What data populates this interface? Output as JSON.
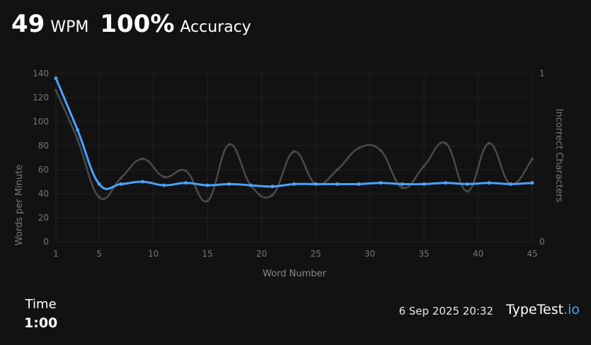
{
  "header": {
    "wpm_value": "49",
    "wpm_label": "WPM",
    "accuracy_value": "100%",
    "accuracy_label": "Accuracy"
  },
  "footer": {
    "time_label": "Time",
    "time_value": "1:00",
    "timestamp": "6 Sep 2025 20:32",
    "logo_main": "TypeTest",
    "logo_suffix": ".io"
  },
  "chart_data": {
    "type": "line",
    "xlabel": "Word Number",
    "ylabel": "Words per Minute",
    "y2label": "Incorrect Characters",
    "xlim": [
      1,
      45
    ],
    "ylim": [
      0,
      140
    ],
    "y2lim": [
      0,
      1
    ],
    "x_ticks": [
      1,
      5,
      10,
      15,
      20,
      25,
      30,
      35,
      40,
      45
    ],
    "y_ticks": [
      0,
      20,
      40,
      60,
      80,
      100,
      120,
      140
    ],
    "y2_ticks": [
      0,
      1
    ],
    "colors": {
      "wpm": "#4aa3ff",
      "raw": "#4a4a4a",
      "grid": "#222222",
      "tick": "#777777"
    },
    "series": [
      {
        "key": "raw",
        "x": [
          1,
          3,
          5,
          7,
          9,
          11,
          13,
          15,
          17,
          19,
          21,
          23,
          25,
          27,
          29,
          31,
          33,
          35,
          37,
          39,
          41,
          43,
          45
        ],
        "values": [
          126,
          85,
          37,
          53,
          69,
          54,
          59,
          34,
          81,
          47,
          39,
          75,
          48,
          60,
          78,
          76,
          45,
          63,
          82,
          42,
          82,
          48,
          69
        ]
      },
      {
        "key": "wpm",
        "x": [
          1,
          3,
          5,
          7,
          9,
          11,
          13,
          15,
          17,
          19,
          21,
          23,
          25,
          27,
          29,
          31,
          33,
          35,
          37,
          39,
          41,
          43,
          45
        ],
        "values": [
          136,
          93,
          48,
          48,
          50,
          47,
          49,
          47,
          48,
          47,
          46,
          48,
          48,
          48,
          48,
          49,
          48,
          48,
          49,
          48,
          49,
          48,
          49
        ]
      }
    ]
  }
}
